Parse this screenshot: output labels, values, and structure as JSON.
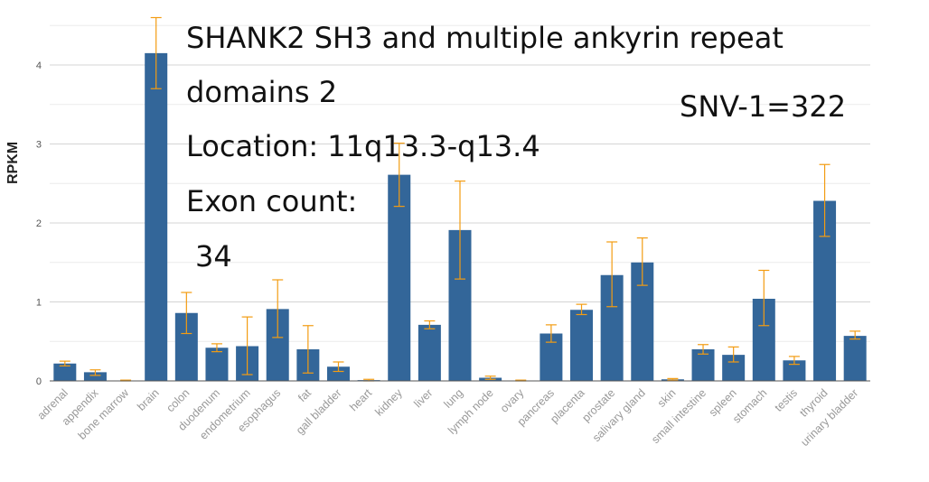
{
  "chart_data": {
    "type": "bar",
    "ylabel": "RPKM",
    "xlabel": "",
    "ylim": [
      0,
      4.7
    ],
    "yticks": [
      0,
      1,
      2,
      3,
      4
    ],
    "grid": true,
    "categories": [
      "adrenal",
      "appendix",
      "bone marrow",
      "brain",
      "colon",
      "duodenum",
      "endometrium",
      "esophagus",
      "fat",
      "gall bladder",
      "heart",
      "kidney",
      "liver",
      "lung",
      "lymph node",
      "ovary",
      "pancreas",
      "placenta",
      "prostate",
      "salivary gland",
      "skin",
      "small intestine",
      "spleen",
      "stomach",
      "testis",
      "thyroid",
      "urinary bladder"
    ],
    "values": [
      0.22,
      0.11,
      0.0,
      4.15,
      0.86,
      0.42,
      0.44,
      0.91,
      0.4,
      0.18,
      0.01,
      2.61,
      0.71,
      1.91,
      0.04,
      0.0,
      0.6,
      0.9,
      1.34,
      1.5,
      0.02,
      0.4,
      0.33,
      1.04,
      0.26,
      2.28,
      0.57
    ],
    "error_low": [
      0.19,
      0.07,
      0.0,
      3.7,
      0.6,
      0.37,
      0.08,
      0.55,
      0.1,
      0.12,
      0.0,
      2.21,
      0.66,
      1.29,
      0.02,
      0.0,
      0.49,
      0.84,
      0.94,
      1.21,
      0.01,
      0.34,
      0.24,
      0.7,
      0.21,
      1.83,
      0.53
    ],
    "error_high": [
      0.25,
      0.14,
      0.01,
      4.6,
      1.12,
      0.47,
      0.81,
      1.28,
      0.7,
      0.24,
      0.02,
      3.01,
      0.76,
      2.53,
      0.06,
      0.01,
      0.71,
      0.97,
      1.76,
      1.81,
      0.03,
      0.46,
      0.43,
      1.4,
      0.31,
      2.74,
      0.63
    ],
    "bar_color": "#336699",
    "error_color": "#f39c12"
  },
  "annotations": {
    "title_line1": "SHANK2 SH3 and multiple ankyrin repeat",
    "title_line2": "domains 2",
    "location": "Location: 11q13.3-q13.4",
    "exon_label": "Exon count:",
    "exon_value": "34",
    "snv": "SNV-1=322"
  }
}
